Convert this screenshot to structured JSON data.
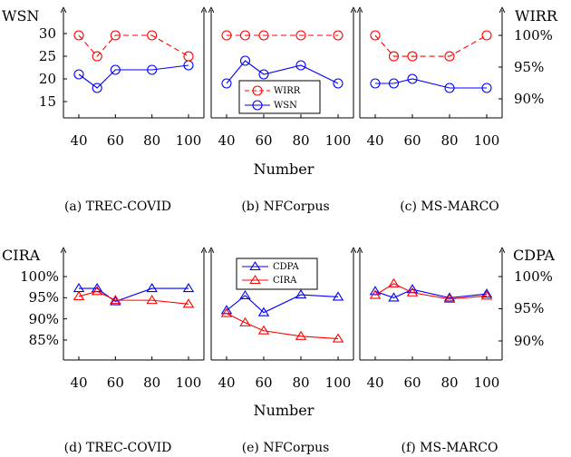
{
  "colors": {
    "red": "#ff0000",
    "blue": "#0000ff",
    "axis": "#000000"
  },
  "rows": [
    {
      "left_axis_title": "WSN",
      "right_axis_title": "WIRR",
      "left_ticks": [
        "15",
        "20",
        "25",
        "30"
      ],
      "right_ticks": [
        "90%",
        "95%",
        "100%"
      ],
      "x_title": "Number"
    },
    {
      "left_axis_title": "CIRA",
      "right_axis_title": "CDPA",
      "left_ticks": [
        "85%",
        "90%",
        "95%",
        "100%"
      ],
      "right_ticks": [
        "90%",
        "95%",
        "100%"
      ],
      "x_title": "Number"
    }
  ],
  "x_ticks": [
    "40",
    "60",
    "80",
    "100"
  ],
  "captions": [
    "(a)  TREC-COVID",
    "(b)  NFCorpus",
    "(c)  MS-MARCO",
    "(d)  TREC-COVID",
    "(e)  NFCorpus",
    "(f)  MS-MARCO"
  ],
  "legends": [
    {
      "items": [
        {
          "label": "WIRR",
          "series": "WIRR"
        },
        {
          "label": "WSN",
          "series": "WSN"
        }
      ]
    },
    {
      "items": [
        {
          "label": "CDPA",
          "series": "CDPA"
        },
        {
          "label": "CIRA",
          "series": "CIRA"
        }
      ]
    }
  ],
  "chart_data": [
    {
      "type": "line",
      "panel": "(a) TREC-COVID",
      "x": [
        40,
        50,
        60,
        80,
        100
      ],
      "series": [
        {
          "name": "WSN",
          "axis": "left",
          "marker": "circle",
          "color": "#0000ff",
          "style": "solid",
          "values": [
            21,
            18,
            22,
            22,
            23
          ]
        },
        {
          "name": "WIRR",
          "axis": "right",
          "marker": "circle",
          "color": "#ff0000",
          "style": "dashed",
          "values": [
            100,
            96.7,
            100,
            100,
            96.7
          ]
        }
      ],
      "xlim": [
        35,
        105
      ],
      "ylim_left": [
        12,
        33
      ],
      "ylim_right": [
        88,
        102
      ]
    },
    {
      "type": "line",
      "panel": "(b) NFCorpus",
      "x": [
        40,
        50,
        60,
        80,
        100
      ],
      "series": [
        {
          "name": "WSN",
          "axis": "left",
          "marker": "circle",
          "color": "#0000ff",
          "style": "solid",
          "values": [
            19,
            24,
            21,
            23,
            19
          ]
        },
        {
          "name": "WIRR",
          "axis": "right",
          "marker": "circle",
          "color": "#ff0000",
          "style": "dashed",
          "values": [
            100,
            100,
            100,
            100,
            100
          ]
        }
      ],
      "xlim": [
        35,
        105
      ],
      "ylim_left": [
        12,
        33
      ],
      "ylim_right": [
        88,
        102
      ]
    },
    {
      "type": "line",
      "panel": "(c) MS-MARCO",
      "x": [
        40,
        50,
        60,
        80,
        100
      ],
      "series": [
        {
          "name": "WSN",
          "axis": "left",
          "marker": "circle",
          "color": "#0000ff",
          "style": "solid",
          "values": [
            19,
            19,
            20,
            18,
            18
          ]
        },
        {
          "name": "WIRR",
          "axis": "right",
          "marker": "circle",
          "color": "#ff0000",
          "style": "dashed",
          "values": [
            100,
            96.7,
            96.7,
            96.7,
            100
          ]
        }
      ],
      "xlim": [
        35,
        105
      ],
      "ylim_left": [
        12,
        33
      ],
      "ylim_right": [
        88,
        102
      ]
    },
    {
      "type": "line",
      "panel": "(d) TREC-COVID",
      "x": [
        40,
        50,
        60,
        80,
        100
      ],
      "series": [
        {
          "name": "CDPA",
          "axis": "left",
          "marker": "triangle",
          "color": "#0000ff",
          "style": "solid",
          "values": [
            97.2,
            97.2,
            94.1,
            97.2,
            97.2
          ]
        },
        {
          "name": "CIRA",
          "axis": "left",
          "marker": "triangle",
          "color": "#ff0000",
          "style": "solid",
          "values": [
            95.3,
            96.5,
            94.4,
            94.4,
            93.5
          ]
        }
      ],
      "xlim": [
        35,
        105
      ],
      "ylim_left": [
        81.5,
        103
      ]
    },
    {
      "type": "line",
      "panel": "(e) NFCorpus",
      "x": [
        40,
        50,
        60,
        80,
        100
      ],
      "series": [
        {
          "name": "CDPA",
          "axis": "left",
          "marker": "triangle",
          "color": "#0000ff",
          "style": "solid",
          "values": [
            92.0,
            95.5,
            91.5,
            95.7,
            95.2
          ]
        },
        {
          "name": "CIRA",
          "axis": "left",
          "marker": "triangle",
          "color": "#ff0000",
          "style": "solid",
          "values": [
            91.3,
            89.1,
            87.2,
            85.9,
            85.3
          ]
        }
      ],
      "xlim": [
        35,
        105
      ],
      "ylim_left": [
        81.5,
        103
      ]
    },
    {
      "type": "line",
      "panel": "(f) MS-MARCO",
      "x": [
        40,
        50,
        60,
        80,
        100
      ],
      "series": [
        {
          "name": "CDPA",
          "axis": "right",
          "marker": "triangle",
          "color": "#0000ff",
          "style": "solid",
          "values": [
            97.7,
            96.7,
            98.0,
            96.7,
            97.3
          ]
        },
        {
          "name": "CIRA",
          "axis": "right",
          "marker": "triangle",
          "color": "#ff0000",
          "style": "solid",
          "values": [
            97.1,
            98.9,
            97.5,
            96.5,
            97.0
          ]
        }
      ],
      "xlim": [
        35,
        105
      ],
      "ylim_right": [
        88,
        102
      ]
    }
  ]
}
